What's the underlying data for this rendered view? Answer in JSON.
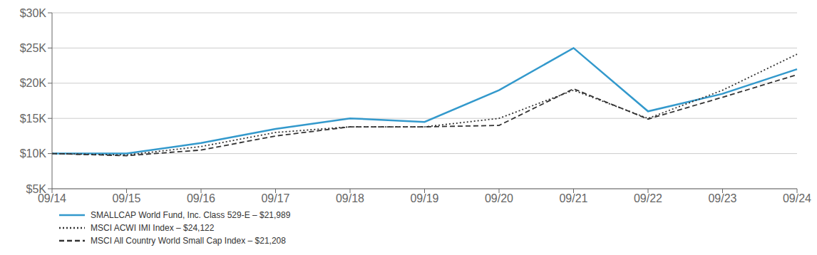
{
  "chart_data": {
    "type": "line",
    "categories": [
      "09/14",
      "09/15",
      "09/16",
      "09/17",
      "09/18",
      "09/19",
      "09/20",
      "09/21",
      "09/22",
      "09/23",
      "09/24"
    ],
    "series": [
      {
        "name": "SMALLCAP World Fund, Inc. Class 529-E – $21,989",
        "color": "#3399cc",
        "line_style": "solid",
        "values": [
          10000,
          10000,
          11500,
          13500,
          15000,
          14500,
          19000,
          25000,
          16000,
          18500,
          21989
        ]
      },
      {
        "name": "MSCI ACWI IMI Index – $24,122",
        "color": "#333333",
        "line_style": "dotted",
        "values": [
          10000,
          9800,
          11000,
          13000,
          13800,
          13800,
          15000,
          19000,
          15000,
          19000,
          24122
        ]
      },
      {
        "name": "MSCI All Country World Small Cap Index – $21,208",
        "color": "#333333",
        "line_style": "dashed",
        "values": [
          10000,
          9700,
          10500,
          12500,
          13800,
          13800,
          14000,
          19200,
          14900,
          18000,
          21208
        ]
      }
    ],
    "ylim": [
      5000,
      30000
    ],
    "yticks": [
      {
        "value": 5000,
        "label": "$5K"
      },
      {
        "value": 10000,
        "label": "$10K"
      },
      {
        "value": 15000,
        "label": "$15K"
      },
      {
        "value": 20000,
        "label": "$20K"
      },
      {
        "value": 25000,
        "label": "$25K"
      },
      {
        "value": 30000,
        "label": "$30K"
      }
    ],
    "grid": true,
    "legend": "bottom"
  }
}
